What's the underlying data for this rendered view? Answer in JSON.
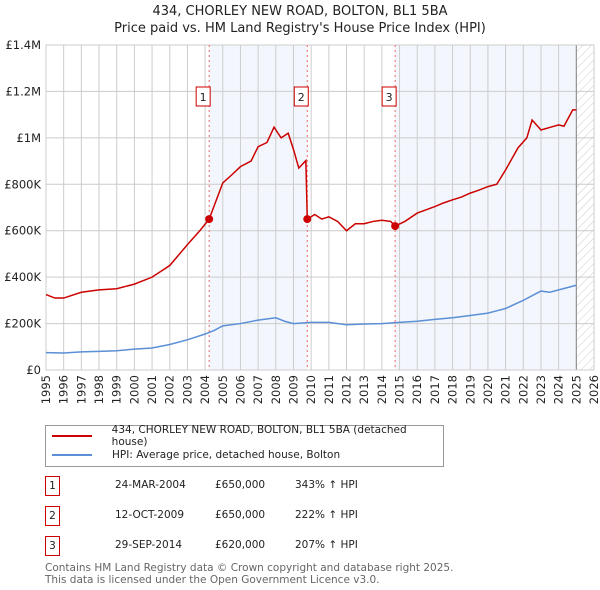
{
  "chart_data": {
    "type": "line",
    "title": "434, CHORLEY NEW ROAD, BOLTON, BL1 5BA",
    "subtitle": "Price paid vs. HM Land Registry's House Price Index (HPI)",
    "xlim": [
      1995,
      2026
    ],
    "ylim": [
      0,
      1400000
    ],
    "x_ticks": [
      "1995",
      "1996",
      "1997",
      "1998",
      "1999",
      "2000",
      "2001",
      "2002",
      "2003",
      "2004",
      "2005",
      "2006",
      "2007",
      "2008",
      "2009",
      "2010",
      "2011",
      "2012",
      "2013",
      "2014",
      "2015",
      "2016",
      "2017",
      "2018",
      "2019",
      "2020",
      "2021",
      "2022",
      "2023",
      "2024",
      "2025",
      "2026"
    ],
    "y_ticks": [
      {
        "v": 0,
        "label": "£0"
      },
      {
        "v": 200000,
        "label": "£200K"
      },
      {
        "v": 400000,
        "label": "£400K"
      },
      {
        "v": 600000,
        "label": "£600K"
      },
      {
        "v": 800000,
        "label": "£800K"
      },
      {
        "v": 1000000,
        "label": "£1M"
      },
      {
        "v": 1200000,
        "label": "£1.2M"
      },
      {
        "v": 1400000,
        "label": "£1.4M"
      }
    ],
    "grid": true,
    "series": [
      {
        "name": "434, CHORLEY NEW ROAD, BOLTON, BL1 5BA (detached house)",
        "color": "#cc0000",
        "x": [
          1995,
          1995.5,
          1996,
          1997,
          1998,
          1999,
          2000,
          2001,
          2002,
          2003,
          2003.7,
          2004.23,
          2005,
          2005.5,
          2006,
          2006.6,
          2007,
          2007.5,
          2007.9,
          2008.3,
          2008.7,
          2009,
          2009.3,
          2009.7,
          2009.78,
          2010.2,
          2010.6,
          2011,
          2011.5,
          2012,
          2012.5,
          2013,
          2013.5,
          2014,
          2014.5,
          2014.75,
          2015.3,
          2016,
          2016.5,
          2017,
          2017.5,
          2018,
          2018.5,
          2019,
          2019.5,
          2020,
          2020.5,
          2021,
          2021.7,
          2022.2,
          2022.5,
          2023,
          2023.5,
          2024,
          2024.3,
          2024.8,
          2025
        ],
        "y": [
          325000,
          310000,
          310000,
          335000,
          345000,
          350000,
          370000,
          400000,
          450000,
          540000,
          600000,
          650000,
          806000,
          840000,
          876000,
          900000,
          962000,
          980000,
          1046000,
          1000000,
          1020000,
          950000,
          870000,
          902000,
          650000,
          670000,
          650000,
          660000,
          640000,
          600000,
          630000,
          630000,
          640000,
          645000,
          640000,
          620000,
          640000,
          676000,
          690000,
          704000,
          720000,
          733000,
          745000,
          762000,
          775000,
          790000,
          800000,
          862000,
          957000,
          1000000,
          1077000,
          1034000,
          1045000,
          1056000,
          1050000,
          1121000,
          1120000
        ]
      },
      {
        "name": "HPI: Average price, detached house, Bolton",
        "color": "#5b8fd6",
        "x": [
          1995,
          1996,
          1997,
          1998,
          1999,
          2000,
          2001,
          2002,
          2003,
          2004,
          2004.5,
          2005,
          2006,
          2007,
          2008,
          2008.5,
          2009,
          2010,
          2011,
          2012,
          2013,
          2014,
          2015,
          2016,
          2017,
          2018,
          2019,
          2020,
          2020.5,
          2021,
          2022,
          2022.5,
          2023,
          2023.5,
          2024,
          2025
        ],
        "y": [
          75000,
          73000,
          78000,
          80000,
          83000,
          90000,
          95000,
          110000,
          130000,
          155000,
          170000,
          190000,
          200000,
          215000,
          225000,
          210000,
          200000,
          205000,
          205000,
          195000,
          198000,
          200000,
          205000,
          210000,
          218000,
          225000,
          235000,
          245000,
          255000,
          265000,
          300000,
          320000,
          340000,
          335000,
          345000,
          365000
        ]
      }
    ],
    "sales": [
      {
        "n": "1",
        "x": 2004.23,
        "y": 650000,
        "date": "24-MAR-2004",
        "price": "£650,000",
        "pct": "343% ↑ HPI"
      },
      {
        "n": "2",
        "x": 2009.78,
        "y": 650000,
        "date": "12-OCT-2009",
        "price": "£650,000",
        "pct": "222% ↑ HPI"
      },
      {
        "n": "3",
        "x": 2014.75,
        "y": 620000,
        "date": "29-SEP-2014",
        "price": "£620,000",
        "pct": "207% ↑ HPI"
      }
    ],
    "hatch_from": 2025.0
  },
  "footer": {
    "line1": "Contains HM Land Registry data © Crown copyright and database right 2025.",
    "line2": "This data is licensed under the Open Government Licence v3.0."
  }
}
